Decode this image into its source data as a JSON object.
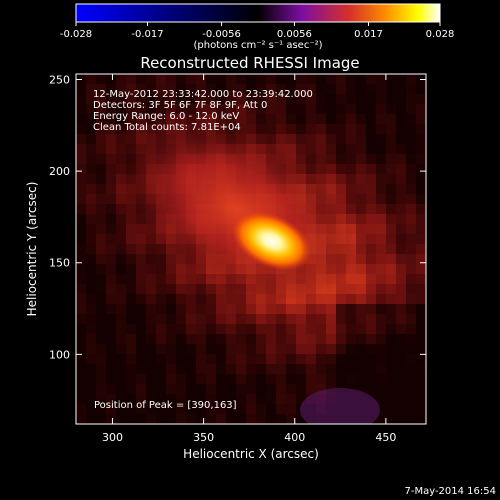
{
  "chart_data": {
    "type": "heatmap",
    "title": "Reconstructed RHESSI Image",
    "xlabel": "Heliocentric X (arcsec)",
    "ylabel": "Heliocentric Y (arcsec)",
    "xlim": [
      280,
      472
    ],
    "ylim": [
      62,
      253
    ],
    "x_ticks": [
      300,
      350,
      400,
      450
    ],
    "y_ticks": [
      100,
      150,
      200,
      250
    ],
    "grid": false,
    "colorbar": {
      "min": -0.028,
      "max": 0.028,
      "ticks": [
        "-0.028",
        "-0.017",
        "-0.0056",
        "0.0056",
        "0.017",
        "0.028"
      ],
      "unit_label": "(photons cm⁻² s⁻¹ asec⁻²)",
      "colormap": [
        "#0000ff",
        "#000000",
        "#7d0ea0",
        "#d4302a",
        "#ff8c00",
        "#ffff00",
        "#ffffff"
      ]
    },
    "annotations": [
      "12-May-2012 23:33:42.000 to 23:39:42.000",
      "Detectors: 3F 5F 6F 7F 8F 9F, Att 0",
      "Energy Range: 6.0 - 12.0 keV",
      "Clean     Total counts: 7.81E+04"
    ],
    "peak_label": "Position of Peak = [390,163]",
    "peak": {
      "x": 390,
      "y": 163,
      "value": 0.028
    }
  },
  "footer": {
    "date": "7-May-2014 16:54"
  }
}
